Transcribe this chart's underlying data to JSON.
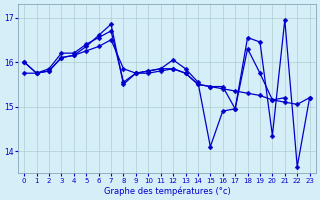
{
  "xlabel": "Graphe des températures (°c)",
  "bg_color": "#d6eef8",
  "line_color": "#0000cc",
  "xlim": [
    -0.5,
    23.5
  ],
  "ylim": [
    13.5,
    17.3
  ],
  "yticks": [
    14,
    15,
    16,
    17
  ],
  "xticks": [
    0,
    1,
    2,
    3,
    4,
    5,
    6,
    7,
    8,
    9,
    10,
    11,
    12,
    13,
    14,
    15,
    16,
    17,
    18,
    19,
    20,
    21,
    22,
    23
  ],
  "series1": [
    [
      0,
      16.0
    ],
    [
      1,
      15.75
    ],
    [
      2,
      15.8
    ],
    [
      3,
      16.1
    ],
    [
      4,
      16.15
    ],
    [
      5,
      16.35
    ],
    [
      6,
      16.6
    ],
    [
      7,
      16.85
    ],
    [
      8,
      15.5
    ],
    [
      9,
      15.75
    ],
    [
      10,
      15.8
    ],
    [
      11,
      15.85
    ],
    [
      12,
      16.05
    ],
    [
      13,
      15.85
    ],
    [
      14,
      15.55
    ],
    [
      15,
      14.1
    ],
    [
      16,
      14.9
    ],
    [
      17,
      14.95
    ],
    [
      18,
      16.55
    ],
    [
      19,
      16.45
    ],
    [
      20,
      14.35
    ],
    [
      21,
      16.95
    ],
    [
      22,
      13.65
    ],
    [
      23,
      15.2
    ]
  ],
  "series2": [
    [
      0,
      16.0
    ],
    [
      1,
      15.75
    ],
    [
      2,
      15.85
    ],
    [
      3,
      16.2
    ],
    [
      4,
      16.2
    ],
    [
      5,
      16.4
    ],
    [
      6,
      16.55
    ],
    [
      7,
      16.7
    ],
    [
      8,
      15.55
    ],
    [
      9,
      15.75
    ],
    [
      10,
      15.8
    ],
    [
      11,
      15.85
    ],
    [
      12,
      15.85
    ],
    [
      13,
      15.75
    ],
    [
      14,
      15.5
    ],
    [
      15,
      15.45
    ],
    [
      16,
      15.45
    ],
    [
      17,
      14.95
    ],
    [
      18,
      16.3
    ],
    [
      19,
      15.75
    ],
    [
      20,
      15.15
    ],
    [
      21,
      15.2
    ]
  ],
  "series3": [
    [
      0,
      15.75
    ],
    [
      1,
      15.75
    ],
    [
      2,
      15.8
    ],
    [
      3,
      16.1
    ],
    [
      4,
      16.15
    ],
    [
      5,
      16.25
    ],
    [
      6,
      16.35
    ],
    [
      7,
      16.5
    ],
    [
      8,
      15.85
    ],
    [
      9,
      15.75
    ],
    [
      10,
      15.75
    ],
    [
      11,
      15.8
    ],
    [
      12,
      15.85
    ],
    [
      13,
      15.75
    ],
    [
      14,
      15.5
    ],
    [
      15,
      15.45
    ],
    [
      16,
      15.4
    ],
    [
      17,
      15.35
    ],
    [
      18,
      15.3
    ],
    [
      19,
      15.25
    ],
    [
      20,
      15.15
    ],
    [
      21,
      15.1
    ],
    [
      22,
      15.05
    ],
    [
      23,
      15.2
    ]
  ],
  "series4": [
    [
      0,
      16.0
    ],
    [
      3,
      16.2
    ],
    [
      6,
      16.6
    ],
    [
      7,
      16.8
    ],
    [
      8,
      16.0
    ],
    [
      12,
      16.05
    ],
    [
      13,
      15.85
    ],
    [
      14,
      15.6
    ],
    [
      16,
      14.9
    ],
    [
      17,
      14.95
    ],
    [
      18,
      16.55
    ],
    [
      21,
      16.95
    ]
  ]
}
